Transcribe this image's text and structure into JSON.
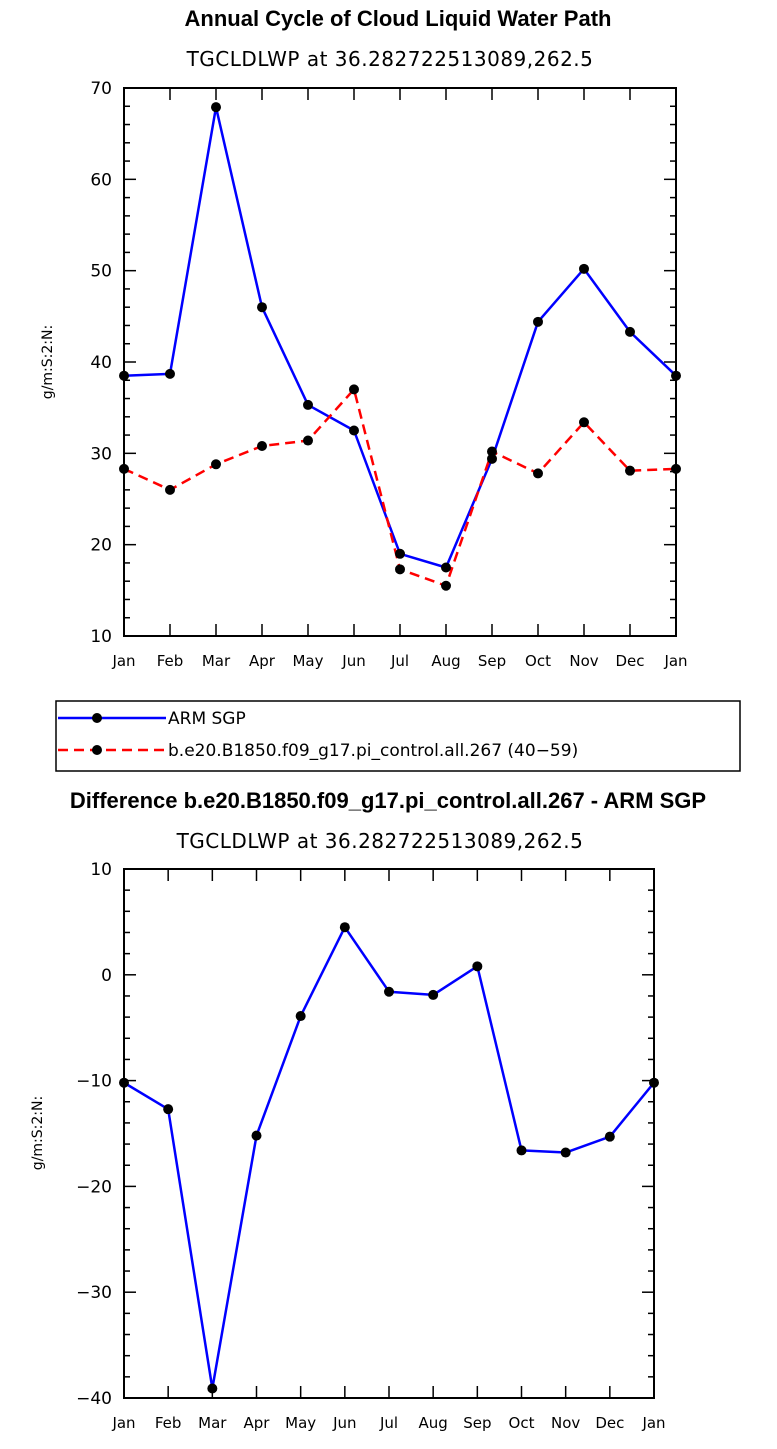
{
  "chart_data": [
    {
      "type": "line",
      "title": "Annual Cycle of Cloud Liquid Water Path",
      "subtitle": "TGCLDLWP  at  36.282722513089,262.5",
      "xlabel": "",
      "ylabel": "g/m:S:2:N:",
      "categories": [
        "Jan",
        "Feb",
        "Mar",
        "Apr",
        "May",
        "Jun",
        "Jul",
        "Aug",
        "Sep",
        "Oct",
        "Nov",
        "Dec",
        "Jan"
      ],
      "ylim": [
        10,
        70
      ],
      "yticks": [
        "10",
        "20",
        "30",
        "40",
        "50",
        "60",
        "70"
      ],
      "grid": false,
      "legend": "bottom",
      "series": [
        {
          "name": "ARM SGP",
          "color": "#0000ff",
          "dash": "solid",
          "values": [
            38.5,
            38.7,
            67.9,
            46.0,
            35.3,
            32.5,
            19.0,
            17.5,
            29.4,
            44.4,
            50.2,
            43.3,
            38.5
          ]
        },
        {
          "name": "b.e20.B1850.f09_g17.pi_control.all.267 (40−59)",
          "color": "#ff0000",
          "dash": "dashed",
          "values": [
            28.3,
            26.0,
            28.8,
            30.8,
            31.4,
            37.0,
            17.3,
            15.5,
            30.2,
            27.8,
            33.4,
            28.1,
            28.3
          ]
        }
      ]
    },
    {
      "type": "line",
      "title": "Difference b.e20.B1850.f09_g17.pi_control.all.267 - ARM SGP",
      "subtitle": "TGCLDLWP  at  36.282722513089,262.5",
      "xlabel": "",
      "ylabel": "g/m:S:2:N:",
      "categories": [
        "Jan",
        "Feb",
        "Mar",
        "Apr",
        "May",
        "Jun",
        "Jul",
        "Aug",
        "Sep",
        "Oct",
        "Nov",
        "Dec",
        "Jan"
      ],
      "ylim": [
        -40,
        10
      ],
      "yticks": [
        "−40",
        "−30",
        "−20",
        "−10",
        "0",
        "10"
      ],
      "grid": false,
      "series": [
        {
          "name": "Difference",
          "color": "#0000ff",
          "dash": "solid",
          "values": [
            -10.2,
            -12.7,
            -39.1,
            -15.2,
            -3.9,
            4.5,
            -1.6,
            -1.9,
            0.8,
            -16.6,
            -16.8,
            -15.3,
            -10.2
          ]
        }
      ]
    }
  ]
}
